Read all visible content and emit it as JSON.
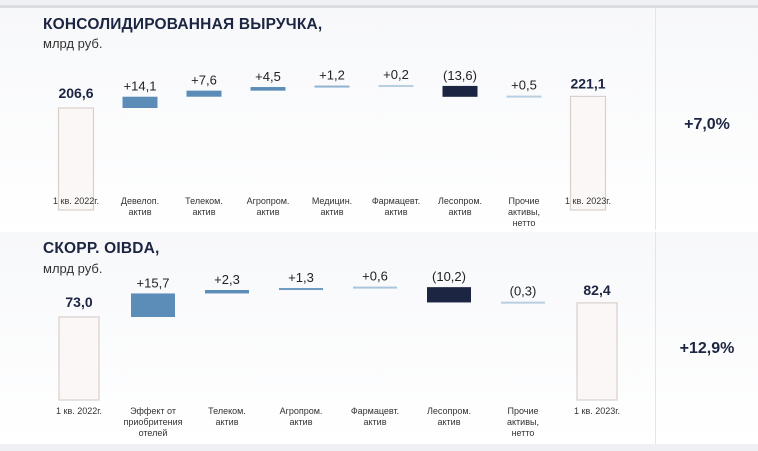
{
  "charts_meta": [
    {
      "percent": "+7,0%"
    },
    {
      "percent": "+12,9%"
    }
  ],
  "chart_data": [
    {
      "type": "waterfall",
      "title": "КОНСОЛИДИРОВАННАЯ ВЫРУЧКА,",
      "subtitle": "млрд руб.",
      "start": {
        "category": "1 кв. 2022г.",
        "value": 206.6,
        "label": "206,6"
      },
      "steps": [
        {
          "category": [
            "Девелоп.",
            "актив"
          ],
          "value": 14.1,
          "label": "+14,1",
          "color": "#5b8db8"
        },
        {
          "category": [
            "Телеком.",
            "актив"
          ],
          "value": 7.6,
          "label": "+7,6",
          "color": "#5b8db8"
        },
        {
          "category": [
            "Агропром.",
            "актив"
          ],
          "value": 4.5,
          "label": "+4,5",
          "color": "#5b8db8"
        },
        {
          "category": [
            "Медицин.",
            "актив"
          ],
          "value": 1.2,
          "label": "+1,2",
          "color": "#8fb2d0"
        },
        {
          "category": [
            "Фармацевт.",
            "актив"
          ],
          "value": 0.2,
          "label": "+0,2",
          "color": "#b8cfe2"
        },
        {
          "category": [
            "Лесопром.",
            "актив"
          ],
          "value": -13.6,
          "label": "(13,6)",
          "color": "#1c2541"
        },
        {
          "category": [
            "Прочие",
            "активы,",
            "нетто"
          ],
          "value": 0.5,
          "label": "+0,5",
          "color": "#b8cfe2"
        }
      ],
      "end": {
        "category": "1 кв. 2023г.",
        "value": 221.1,
        "label": "221,1"
      },
      "change": "+7,0%"
    },
    {
      "type": "waterfall",
      "title": "СКОРР. OIBDA,",
      "subtitle": "млрд руб.",
      "start": {
        "category": "1 кв. 2022г.",
        "value": 73.0,
        "label": "73,0"
      },
      "steps": [
        {
          "category": [
            "Эффект от",
            "приобритения",
            "отелей"
          ],
          "value": 15.7,
          "label": "+15,7",
          "color": "#5b8db8"
        },
        {
          "category": [
            "Телеком.",
            "актив"
          ],
          "value": 2.3,
          "label": "+2,3",
          "color": "#5b8db8"
        },
        {
          "category": [
            "Агропром.",
            "актив"
          ],
          "value": 1.3,
          "label": "+1,3",
          "color": "#6f9bc2"
        },
        {
          "category": [
            "Фармацевт.",
            "актив"
          ],
          "value": 0.6,
          "label": "+0,6",
          "color": "#a9c4dc"
        },
        {
          "category": [
            "Лесопром.",
            "актив"
          ],
          "value": -10.2,
          "label": "(10,2)",
          "color": "#1c2541"
        },
        {
          "category": [
            "Прочие",
            "активы,",
            "нетто"
          ],
          "value": -0.3,
          "label": "(0,3)",
          "color": "#b8cfe2"
        }
      ],
      "end": {
        "category": "1 кв. 2023г.",
        "value": 82.4,
        "label": "82,4"
      },
      "change": "+12,9%"
    }
  ]
}
